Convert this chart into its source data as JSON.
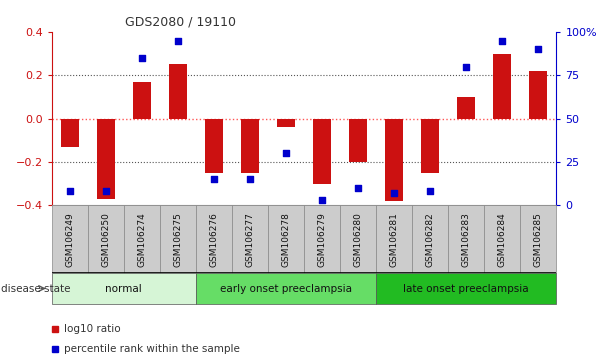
{
  "title": "GDS2080 / 19110",
  "samples": [
    "GSM106249",
    "GSM106250",
    "GSM106274",
    "GSM106275",
    "GSM106276",
    "GSM106277",
    "GSM106278",
    "GSM106279",
    "GSM106280",
    "GSM106281",
    "GSM106282",
    "GSM106283",
    "GSM106284",
    "GSM106285"
  ],
  "log10_ratio": [
    -0.13,
    -0.37,
    0.17,
    0.25,
    -0.25,
    -0.25,
    -0.04,
    -0.3,
    -0.2,
    -0.38,
    -0.25,
    0.1,
    0.3,
    0.22
  ],
  "percentile": [
    8,
    8,
    85,
    95,
    15,
    15,
    30,
    3,
    10,
    7,
    8,
    80,
    95,
    90
  ],
  "ylim_left": [
    -0.4,
    0.4
  ],
  "ylim_right": [
    0,
    100
  ],
  "yticks_left": [
    -0.4,
    -0.2,
    0.0,
    0.2,
    0.4
  ],
  "yticks_right": [
    0,
    25,
    50,
    75,
    100
  ],
  "ytick_labels_right": [
    "0",
    "25",
    "50",
    "75",
    "100%"
  ],
  "groups": [
    {
      "label": "normal",
      "start": 0,
      "end": 4,
      "color": "#d6f5d6"
    },
    {
      "label": "early onset preeclampsia",
      "start": 4,
      "end": 9,
      "color": "#66dd66"
    },
    {
      "label": "late onset preeclampsia",
      "start": 9,
      "end": 14,
      "color": "#22bb22"
    }
  ],
  "bar_color": "#cc1111",
  "scatter_color": "#0000cc",
  "zero_line_color": "#ff5555",
  "dotted_line_color": "#555555",
  "legend_log10_label": "log10 ratio",
  "legend_pct_label": "percentile rank within the sample",
  "title_color": "#333333",
  "axis_label_color_left": "#cc1111",
  "axis_label_color_right": "#0000cc",
  "bar_width": 0.5,
  "scatter_size": 22,
  "ticklabel_bg": "#cccccc",
  "ticklabel_edge": "#888888"
}
